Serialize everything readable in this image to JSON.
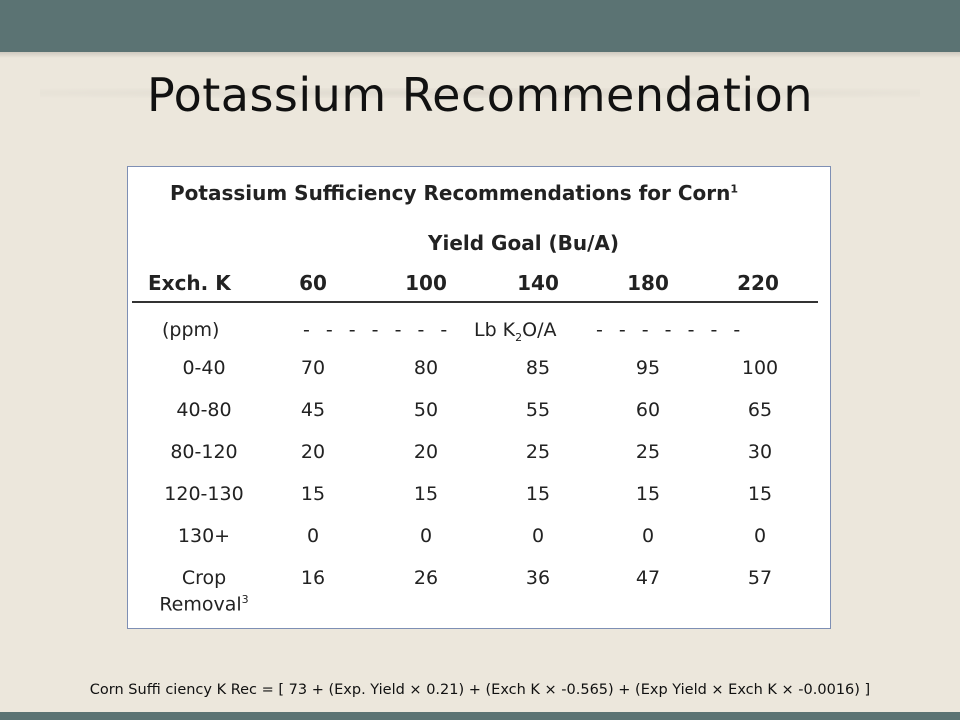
{
  "slide_title": "Potassium Recommendation",
  "table": {
    "title": "Potassium Sufficiency Recommendations for Corn",
    "title_footnote": "1",
    "yield_goal_label": "Yield Goal (Bu/A)",
    "row_header": "Exch. K",
    "columns": [
      "60",
      "100",
      "140",
      "180",
      "220"
    ],
    "units_row": {
      "ppm": "(ppm)",
      "dashes_left": "- - - - - - -",
      "unit_prefix": "Lb K",
      "unit_sub": "2",
      "unit_suffix": "O/A",
      "dashes_right": "- - - - - - -"
    },
    "rows": [
      {
        "label": "0-40",
        "values": [
          "70",
          "80",
          "85",
          "95",
          "100"
        ]
      },
      {
        "label": "40-80",
        "values": [
          "45",
          "50",
          "55",
          "60",
          "65"
        ]
      },
      {
        "label": "80-120",
        "values": [
          "20",
          "20",
          "25",
          "25",
          "30"
        ]
      },
      {
        "label": "120-130",
        "values": [
          "15",
          "15",
          "15",
          "15",
          "15"
        ]
      },
      {
        "label": "130+",
        "values": [
          "0",
          "0",
          "0",
          "0",
          "0"
        ]
      }
    ],
    "crop_removal": {
      "label_line1": "Crop",
      "label_line2": "Removal",
      "label_footnote": "3",
      "values": [
        "16",
        "26",
        "36",
        "47",
        "57"
      ]
    }
  },
  "footer_formula": "Corn Suffi ciency K Rec = [ 73 + (Exp. Yield × 0.21) + (Exch K × -0.565) + (Exp Yield × Exch K × -0.0016) ]",
  "colors": {
    "top_bar": "#5b7373",
    "background": "#ece7dc",
    "table_border": "#7e8fb4"
  }
}
